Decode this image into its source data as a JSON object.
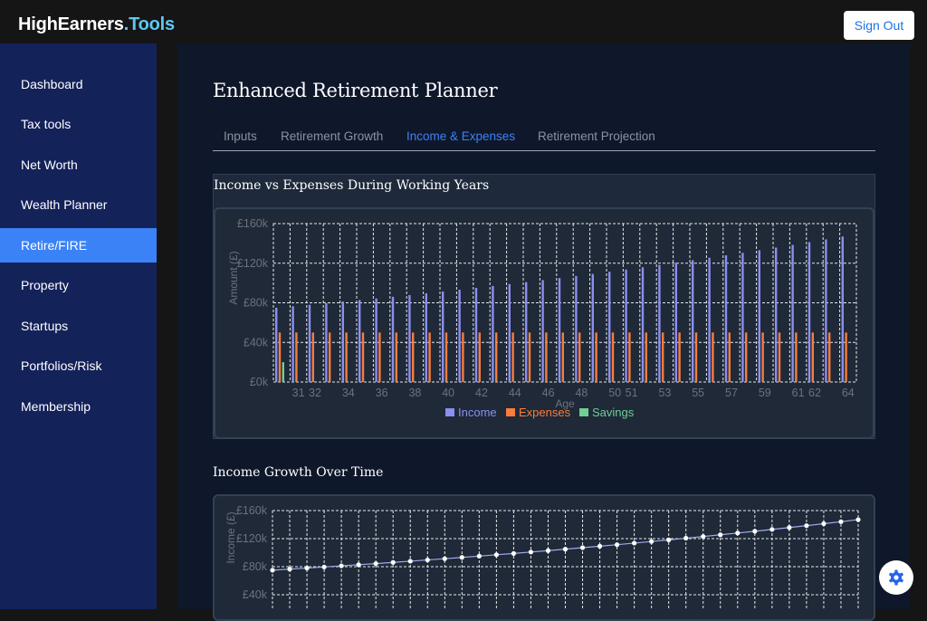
{
  "brand": {
    "main": "HighEarners",
    "dot": ".",
    "accent": "Tools"
  },
  "header": {
    "sign_out": "Sign Out"
  },
  "sidebar": {
    "items": [
      {
        "label": "Dashboard",
        "active": false
      },
      {
        "label": "Tax tools",
        "active": false
      },
      {
        "label": "Net Worth",
        "active": false
      },
      {
        "label": "Wealth Planner",
        "active": false
      },
      {
        "label": "Retire/FIRE",
        "active": true
      },
      {
        "label": "Property",
        "active": false
      },
      {
        "label": "Startups",
        "active": false
      },
      {
        "label": "Portfolios/Risk",
        "active": false
      },
      {
        "label": "Membership",
        "active": false
      }
    ]
  },
  "page": {
    "title": "Enhanced Retirement Planner"
  },
  "tabs": [
    {
      "label": "Inputs",
      "active": false
    },
    {
      "label": "Retirement Growth",
      "active": false
    },
    {
      "label": "Income & Expenses",
      "active": true
    },
    {
      "label": "Retirement Projection",
      "active": false
    }
  ],
  "sections": {
    "income_vs_expenses_title": "Income vs Expenses During Working Years",
    "income_growth_title": "Income Growth Over Time"
  },
  "colors": {
    "income": "#8b8ff0",
    "expenses": "#f97d3c",
    "savings": "#6fcf97",
    "active_tab": "#3b82f6",
    "sidebar": "#14225a"
  },
  "icons": {
    "settings": "gear-icon"
  },
  "chart_data": [
    {
      "type": "bar",
      "title": "Income vs Expenses During Working Years",
      "xlabel": "Age",
      "ylabel": "Amount (£)",
      "ylim": [
        0,
        160000
      ],
      "yticks": [
        "£0k",
        "£40k",
        "£80k",
        "£120k",
        "£160k"
      ],
      "xticks": [
        "31",
        "32",
        "34",
        "36",
        "38",
        "40",
        "42",
        "44",
        "46",
        "48",
        "50",
        "51",
        "53",
        "55",
        "57",
        "59",
        "61",
        "62",
        "64"
      ],
      "grid": true,
      "legend_position": "bottom",
      "categories": [
        30,
        31,
        32,
        33,
        34,
        35,
        36,
        37,
        38,
        39,
        40,
        41,
        42,
        43,
        44,
        45,
        46,
        47,
        48,
        49,
        50,
        51,
        52,
        53,
        54,
        55,
        56,
        57,
        58,
        59,
        60,
        61,
        62,
        63,
        64
      ],
      "series": [
        {
          "name": "Income",
          "values": [
            75000,
            76500,
            78000,
            79600,
            81200,
            82800,
            84400,
            86100,
            87800,
            89600,
            91400,
            93200,
            95100,
            97000,
            98900,
            100900,
            102900,
            105000,
            107100,
            109200,
            111400,
            113600,
            115900,
            118200,
            120600,
            123000,
            125500,
            128000,
            130500,
            133100,
            135800,
            138500,
            141300,
            144100,
            147000
          ]
        },
        {
          "name": "Expenses",
          "values": [
            50000,
            50000,
            50000,
            50000,
            50000,
            50000,
            50000,
            50000,
            50000,
            50000,
            50000,
            50000,
            50000,
            50000,
            50000,
            50000,
            50000,
            50000,
            50000,
            50000,
            50000,
            50000,
            50000,
            50000,
            50000,
            50000,
            50000,
            50000,
            50000,
            50000,
            50000,
            50000,
            50000,
            50000,
            50000
          ]
        },
        {
          "name": "Savings",
          "values": [
            20000,
            0,
            0,
            0,
            0,
            0,
            0,
            0,
            0,
            0,
            0,
            0,
            0,
            0,
            0,
            0,
            0,
            0,
            0,
            0,
            0,
            0,
            0,
            0,
            0,
            0,
            0,
            0,
            0,
            0,
            0,
            0,
            0,
            0,
            0
          ]
        }
      ]
    },
    {
      "type": "line",
      "title": "Income Growth Over Time",
      "ylabel": "Income (£)",
      "ylim": [
        40000,
        160000
      ],
      "yticks": [
        "£40k",
        "£80k",
        "£120k",
        "£160k"
      ],
      "grid": true,
      "series": [
        {
          "name": "Income",
          "values": [
            75000,
            76500,
            78000,
            79600,
            81200,
            82800,
            84400,
            86100,
            87800,
            89600,
            91400,
            93200,
            95100,
            97000,
            98900,
            100900,
            102900,
            105000,
            107100,
            109200,
            111400,
            113600,
            115900,
            118200,
            120600,
            123000,
            125500,
            128000,
            130500,
            133100,
            135800,
            138500,
            141300,
            144100,
            147000
          ]
        }
      ]
    }
  ]
}
